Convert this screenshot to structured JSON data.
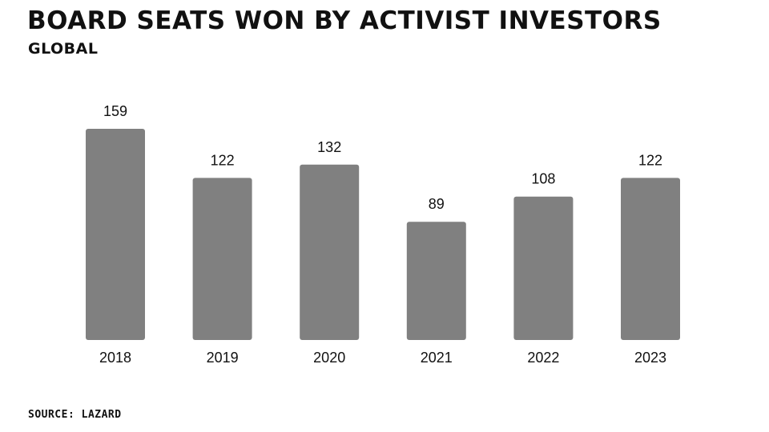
{
  "header": {
    "title": "BOARD SEATS WON BY ACTIVIST INVESTORS",
    "subtitle": "GLOBAL"
  },
  "footer": {
    "source": "SOURCE: LAZARD"
  },
  "colors": {
    "bar": "#808080",
    "text": "#111111",
    "background": "#ffffff"
  },
  "chart_data": {
    "type": "bar",
    "title": "BOARD SEATS WON BY ACTIVIST INVESTORS",
    "subtitle": "GLOBAL",
    "categories": [
      "2018",
      "2019",
      "2020",
      "2021",
      "2022",
      "2023"
    ],
    "values": [
      159,
      122,
      132,
      89,
      108,
      122
    ],
    "data_labels": [
      "159",
      "122",
      "132",
      "89",
      "108",
      "122"
    ],
    "xlabel": "",
    "ylabel": "",
    "ylim": [
      0,
      159
    ],
    "grid": false,
    "legend": "none",
    "y_axis_visible": false
  }
}
